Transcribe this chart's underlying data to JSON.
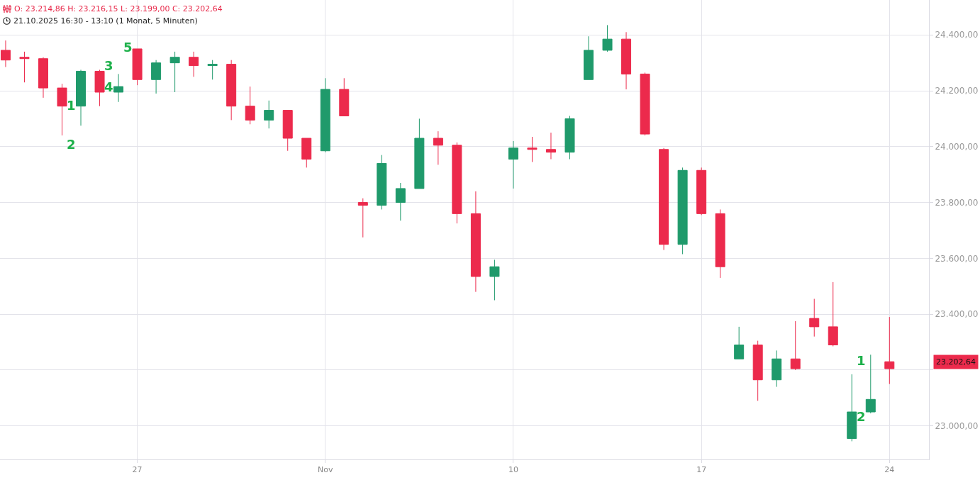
{
  "chart_data": {
    "type": "candlestick",
    "title": "O: 23.214,86  H: 23.216,15  L: 23.199,00  C: 23.202,64",
    "subtitle": "21.10.2025 16:30 - 13:10   (1 Monat, 5 Minuten)",
    "categories": [
      null,
      null,
      null,
      null,
      null,
      null,
      null,
      "27",
      null,
      null,
      null,
      null,
      null,
      null,
      null,
      null,
      null,
      "Nov",
      null,
      null,
      null,
      null,
      null,
      null,
      null,
      null,
      null,
      "10",
      null,
      null,
      null,
      null,
      null,
      null,
      null,
      null,
      null,
      "17",
      null,
      null,
      null,
      null,
      null,
      null,
      null,
      null,
      null,
      "24"
    ],
    "ohlc": [
      [
        24345,
        24380,
        24285,
        24310
      ],
      [
        24320,
        24340,
        24230,
        24315
      ],
      [
        24315,
        24320,
        24175,
        24210
      ],
      [
        24210,
        24225,
        24040,
        24145
      ],
      [
        24145,
        24275,
        24075,
        24270
      ],
      [
        24270,
        24275,
        24145,
        24195
      ],
      [
        24195,
        24260,
        24160,
        24215
      ],
      [
        24350,
        24350,
        24220,
        24240
      ],
      [
        24240,
        24310,
        24190,
        24300
      ],
      [
        24300,
        24340,
        24195,
        24320
      ],
      [
        24320,
        24340,
        24250,
        24290
      ],
      [
        24290,
        24310,
        24240,
        24295
      ],
      [
        24295,
        24310,
        24095,
        24145
      ],
      [
        24145,
        24215,
        24080,
        24095
      ],
      [
        24095,
        24165,
        24065,
        24130
      ],
      [
        24130,
        24130,
        23985,
        24030
      ],
      [
        24030,
        24030,
        23925,
        23955
      ],
      [
        23985,
        24245,
        23980,
        24205
      ],
      [
        24205,
        24245,
        24110,
        24110
      ],
      [
        23800,
        23815,
        23675,
        23790
      ],
      [
        23790,
        23970,
        23775,
        23940
      ],
      [
        23800,
        23870,
        23735,
        23850
      ],
      [
        23850,
        24100,
        23850,
        24030
      ],
      [
        24030,
        24055,
        23935,
        24005
      ],
      [
        24005,
        24015,
        23725,
        23760
      ],
      [
        23760,
        23840,
        23480,
        23535
      ],
      [
        23535,
        23595,
        23450,
        23570
      ],
      [
        23955,
        24020,
        23850,
        23995
      ],
      [
        23995,
        24035,
        23945,
        23990
      ],
      [
        23990,
        24050,
        23955,
        23980
      ],
      [
        23980,
        24110,
        23955,
        24100
      ],
      [
        24240,
        24395,
        24240,
        24345
      ],
      [
        24345,
        24435,
        24340,
        24385
      ],
      [
        24385,
        24410,
        24205,
        24260
      ],
      [
        24260,
        24265,
        24040,
        24045
      ],
      [
        23990,
        23995,
        23630,
        23650
      ],
      [
        23650,
        23925,
        23615,
        23915
      ],
      [
        23915,
        23925,
        23755,
        23760
      ],
      [
        23760,
        23775,
        23530,
        23570
      ],
      [
        23240,
        23355,
        23240,
        23290
      ],
      [
        23290,
        23305,
        23090,
        23165
      ],
      [
        23165,
        23270,
        23140,
        23240
      ],
      [
        23240,
        23375,
        23200,
        23205
      ],
      [
        23385,
        23455,
        23320,
        23355
      ],
      [
        23355,
        23515,
        23285,
        23290
      ],
      [
        22955,
        23185,
        22945,
        23050
      ],
      [
        23050,
        23255,
        23045,
        23095
      ],
      [
        23230,
        23390,
        23150,
        23205
      ]
    ],
    "ylim": [
      22880,
      24525
    ],
    "yticks": [
      {
        "value": 23000,
        "label": "23.000,00"
      },
      {
        "value": 23200,
        "label": null
      },
      {
        "value": 23400,
        "label": "23.400,00"
      },
      {
        "value": 23600,
        "label": "23.600,00"
      },
      {
        "value": 23800,
        "label": "23.800,00"
      },
      {
        "value": 24000,
        "label": "24.000,00"
      },
      {
        "value": 24200,
        "label": "24.200,00"
      },
      {
        "value": 24400,
        "label": "24.400,00"
      }
    ],
    "grid": true,
    "annotations": [
      "1",
      "2",
      "3",
      "4",
      "5",
      "1",
      "2",
      "23.202,64"
    ]
  }
}
